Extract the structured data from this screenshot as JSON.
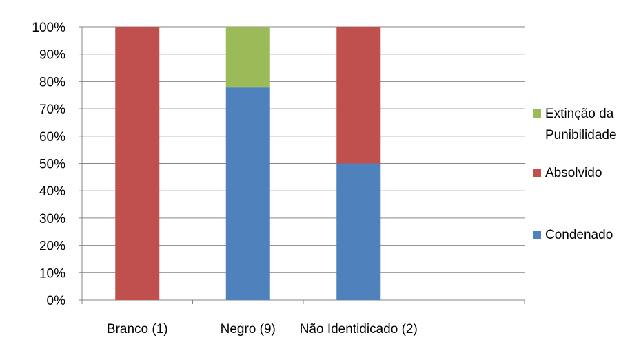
{
  "chart_data": {
    "type": "bar",
    "stacked": true,
    "percent": true,
    "categories": [
      "Branco (1)",
      "Negro (9)",
      "Não Identidicado (2)",
      ""
    ],
    "series": [
      {
        "name": "Condenado",
        "values": [
          0,
          77.8,
          50,
          0
        ],
        "color": "#4F81BD"
      },
      {
        "name": "Absolvido",
        "values": [
          100,
          0,
          50,
          0
        ],
        "color": "#C0504D"
      },
      {
        "name": "Extinção da Punibilidade",
        "values": [
          0,
          22.2,
          0,
          0
        ],
        "color": "#9BBB59"
      }
    ],
    "y_ticks": [
      "0%",
      "10%",
      "20%",
      "30%",
      "40%",
      "50%",
      "60%",
      "70%",
      "80%",
      "90%",
      "100%"
    ],
    "ylim": [
      0,
      100
    ],
    "grid": true,
    "legend_position": "right",
    "legend": [
      {
        "label_lines": [
          "Extinção da",
          "Punibilidade"
        ],
        "series": "Extinção da Punibilidade"
      },
      {
        "label_lines": [
          "Absolvido"
        ],
        "series": "Absolvido"
      },
      {
        "label_lines": [
          "Condenado"
        ],
        "series": "Condenado"
      }
    ]
  }
}
